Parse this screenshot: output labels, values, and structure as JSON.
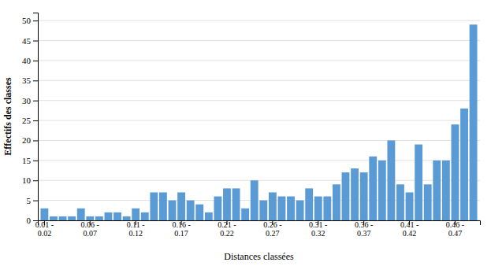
{
  "chart_data": {
    "type": "bar",
    "y_label": "Effectifs des classes",
    "x_label": "Distances classées",
    "categories": [
      "0.01 -\n0.02",
      null,
      null,
      null,
      null,
      "0.06 -\n0.07",
      null,
      null,
      null,
      null,
      "0.11 -\n0.12",
      null,
      null,
      null,
      null,
      "0.16 -\n0.17",
      null,
      null,
      null,
      null,
      "0.21 -\n0.22",
      null,
      null,
      null,
      null,
      "0.26 -\n0.27",
      null,
      null,
      null,
      null,
      "0.31 -\n0.32",
      null,
      null,
      null,
      null,
      "0.36 -\n0.37",
      null,
      null,
      null,
      null,
      "0.41 -\n0.42",
      null,
      null,
      null,
      null,
      "0.46 -\n0.47",
      null,
      null
    ],
    "values": [
      3,
      1,
      1,
      1,
      3,
      1,
      1,
      2,
      2,
      1,
      3,
      2,
      7,
      7,
      5,
      7,
      5,
      4,
      2,
      6,
      8,
      8,
      3,
      10,
      5,
      7,
      6,
      6,
      5,
      8,
      6,
      6,
      9,
      12,
      13,
      12,
      16,
      15,
      20,
      9,
      7,
      19,
      9,
      15,
      15,
      24,
      28,
      49
    ],
    "color": "#5B9BD5",
    "ylim": [
      0,
      52
    ],
    "yticks": [
      0,
      5,
      10,
      15,
      20,
      25,
      30,
      35,
      40,
      45,
      50
    ],
    "grid": true
  }
}
